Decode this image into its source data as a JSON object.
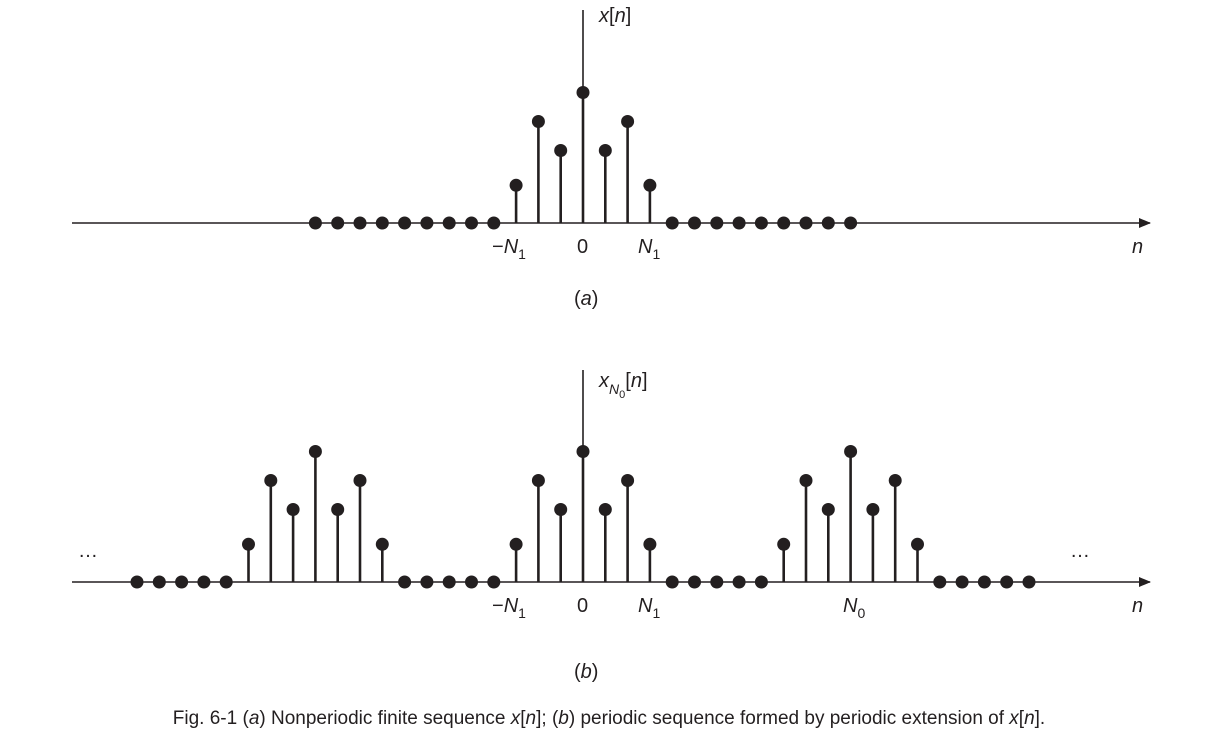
{
  "panel_a": {
    "ylabel": {
      "base": "x",
      "open": "[",
      "var": "n",
      "close": "]"
    },
    "xlabel": "n",
    "ticks": {
      "neg_n1": {
        "sign": "−",
        "base": "N",
        "sub": "1"
      },
      "zero": "0",
      "n1": {
        "base": "N",
        "sub": "1"
      }
    },
    "tag": {
      "open": "(",
      "letter": "a",
      "close": ")"
    },
    "sequence": {
      "n": [
        -12,
        -11,
        -10,
        -9,
        -8,
        -7,
        -6,
        -5,
        -4,
        -3,
        -2,
        -1,
        0,
        1,
        2,
        3,
        4,
        5,
        6,
        7,
        8,
        9,
        10,
        11,
        12
      ],
      "values": [
        0,
        0,
        0,
        0,
        0,
        0,
        0,
        0,
        0,
        1.3,
        3.5,
        2.5,
        4.5,
        2.5,
        3.5,
        1.3,
        0,
        0,
        0,
        0,
        0,
        0,
        0,
        0,
        0
      ]
    }
  },
  "panel_b": {
    "ylabel": {
      "base": "x",
      "sub": "N",
      "subsub": "0",
      "open": "[",
      "var": "n",
      "close": "]"
    },
    "xlabel": "n",
    "ticks": {
      "neg_n1": {
        "sign": "−",
        "base": "N",
        "sub": "1"
      },
      "zero": "0",
      "n1": {
        "base": "N",
        "sub": "1"
      },
      "n0": {
        "base": "N",
        "sub": "0"
      }
    },
    "ellipsis_left": "…",
    "ellipsis_right": "…",
    "tag": {
      "open": "(",
      "letter": "b",
      "close": ")"
    },
    "period": 12,
    "one_period_values": [
      4.5,
      2.5,
      3.5,
      1.3,
      0,
      0,
      0,
      0,
      0,
      1.3,
      3.5,
      2.5
    ],
    "n_range": [
      -20,
      20
    ]
  },
  "caption": {
    "prefix": "Fig. 6-1  (",
    "a": "a",
    "part1": ") Nonperiodic finite sequence ",
    "x1": "x",
    "open1": "[",
    "n1": "n",
    "close1": "]; (",
    "b": "b",
    "part2": ") periodic sequence formed by periodic extension of ",
    "x2": "x",
    "open2": "[",
    "n2": "n",
    "close2": "]."
  },
  "colors": {
    "ink": "#231f20"
  }
}
